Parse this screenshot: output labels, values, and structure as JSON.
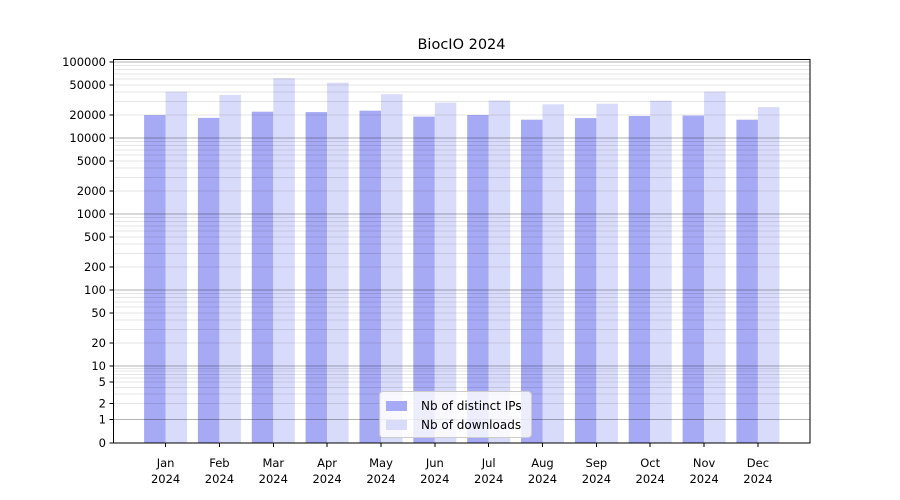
{
  "chart_data": {
    "type": "bar",
    "title": "BiocIO 2024",
    "categories": [
      "Jan 2024",
      "Feb 2024",
      "Mar 2024",
      "Apr 2024",
      "May 2024",
      "Jun 2024",
      "Jul 2024",
      "Aug 2024",
      "Sep 2024",
      "Oct 2024",
      "Nov 2024",
      "Dec 2024"
    ],
    "series": [
      {
        "name": "Nb of distinct IPs",
        "color": "#a6a9f4",
        "values": [
          20000,
          18400,
          22200,
          21900,
          22900,
          19100,
          20100,
          17400,
          18300,
          19500,
          19700,
          17400
        ]
      },
      {
        "name": "Nb of downloads",
        "color": "#d9dbfa",
        "values": [
          40700,
          36900,
          61200,
          53400,
          37700,
          29100,
          31100,
          27800,
          28300,
          31000,
          40800,
          25500
        ]
      }
    ],
    "xlabel": "",
    "ylabel": "",
    "yscale": "symlog",
    "ylim": [
      0,
      108000
    ],
    "ytick_labels": [
      "100000",
      "50000",
      "20000",
      "10000",
      "5000",
      "2000",
      "1000",
      "500",
      "200",
      "100",
      "50",
      "20",
      "10",
      "5",
      "2",
      "1",
      "0"
    ],
    "grid": "horizontal major+minor",
    "legend_position": "lower center"
  },
  "style": {
    "axis_color": "#000000",
    "text_color": "#000000",
    "grid_major_color": "rgba(0,0,0,0.30)",
    "grid_minor_color": "rgba(0,0,0,0.10)",
    "legend_bg": "rgba(255,255,255,0.8)",
    "legend_border": "#cccccc",
    "background": "#ffffff"
  }
}
